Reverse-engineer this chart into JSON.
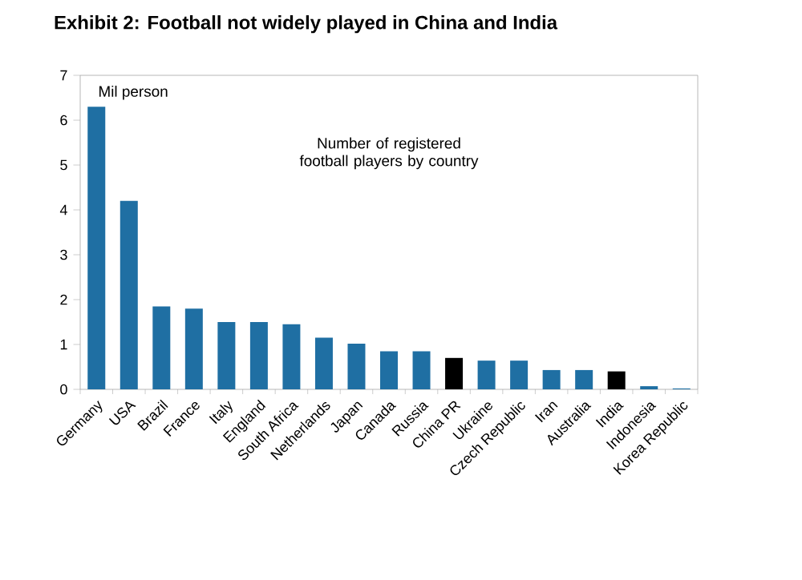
{
  "chart_data": {
    "type": "bar",
    "title": "Exhibit 2: Football not widely played in China and India",
    "categories": [
      "Germany",
      "USA",
      "Brazil",
      "France",
      "Italy",
      "England",
      "South Africa",
      "Netherlands",
      "Japan",
      "Canada",
      "Russia",
      "China PR",
      "Ukraine",
      "Czech Republic",
      "Iran",
      "Australia",
      "India",
      "Indonesia",
      "Korea Republic"
    ],
    "values": [
      6.3,
      4.2,
      1.85,
      1.8,
      1.5,
      1.5,
      1.45,
      1.15,
      1.02,
      0.85,
      0.85,
      0.7,
      0.64,
      0.64,
      0.43,
      0.43,
      0.4,
      0.07,
      0.02
    ],
    "colors": [
      "#1f6fa3",
      "#1f6fa3",
      "#1f6fa3",
      "#1f6fa3",
      "#1f6fa3",
      "#1f6fa3",
      "#1f6fa3",
      "#1f6fa3",
      "#1f6fa3",
      "#1f6fa3",
      "#1f6fa3",
      "#000000",
      "#1f6fa3",
      "#1f6fa3",
      "#1f6fa3",
      "#1f6fa3",
      "#000000",
      "#1f6fa3",
      "#1f6fa3"
    ],
    "ylim": [
      0,
      7
    ],
    "yticks": [
      0,
      1,
      2,
      3,
      4,
      5,
      6,
      7
    ],
    "annotations": [
      "Mil person",
      "Number of registered football players by country"
    ]
  }
}
